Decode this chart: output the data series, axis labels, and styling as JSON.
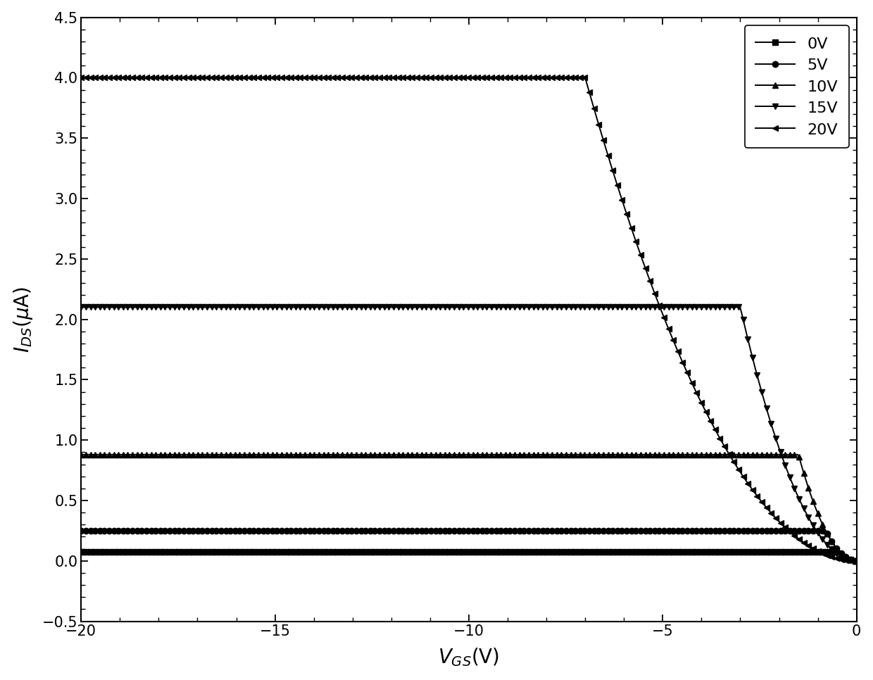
{
  "title": "",
  "xlabel": "V_{GS}(V)",
  "ylabel": "I_{DS}(μA)",
  "xlim": [
    -20,
    0
  ],
  "ylim": [
    -0.5,
    4.5
  ],
  "xticks": [
    -20,
    -15,
    -10,
    -5,
    0
  ],
  "yticks": [
    -0.5,
    0.0,
    0.5,
    1.0,
    1.5,
    2.0,
    2.5,
    3.0,
    3.5,
    4.0,
    4.5
  ],
  "series": [
    {
      "label": "0V",
      "vds": 0,
      "sat_current": 0.075,
      "marker": "s",
      "color": "#000000",
      "vknee": -0.5
    },
    {
      "label": "5V",
      "vds": 5,
      "sat_current": 0.25,
      "marker": "o",
      "color": "#000000",
      "vknee": -0.8
    },
    {
      "label": "10V",
      "vds": 10,
      "sat_current": 0.88,
      "marker": "^",
      "color": "#000000",
      "vknee": -1.5
    },
    {
      "label": "15V",
      "vds": 15,
      "sat_current": 2.1,
      "marker": "v",
      "color": "#000000",
      "vknee": -3.0
    },
    {
      "label": "20V",
      "vds": 20,
      "sat_current": 4.0,
      "marker": "<",
      "color": "#000000",
      "vknee": -7.0
    }
  ],
  "background_color": "#ffffff",
  "marker_size": 6,
  "line_width": 1.4,
  "marker_every": 3
}
